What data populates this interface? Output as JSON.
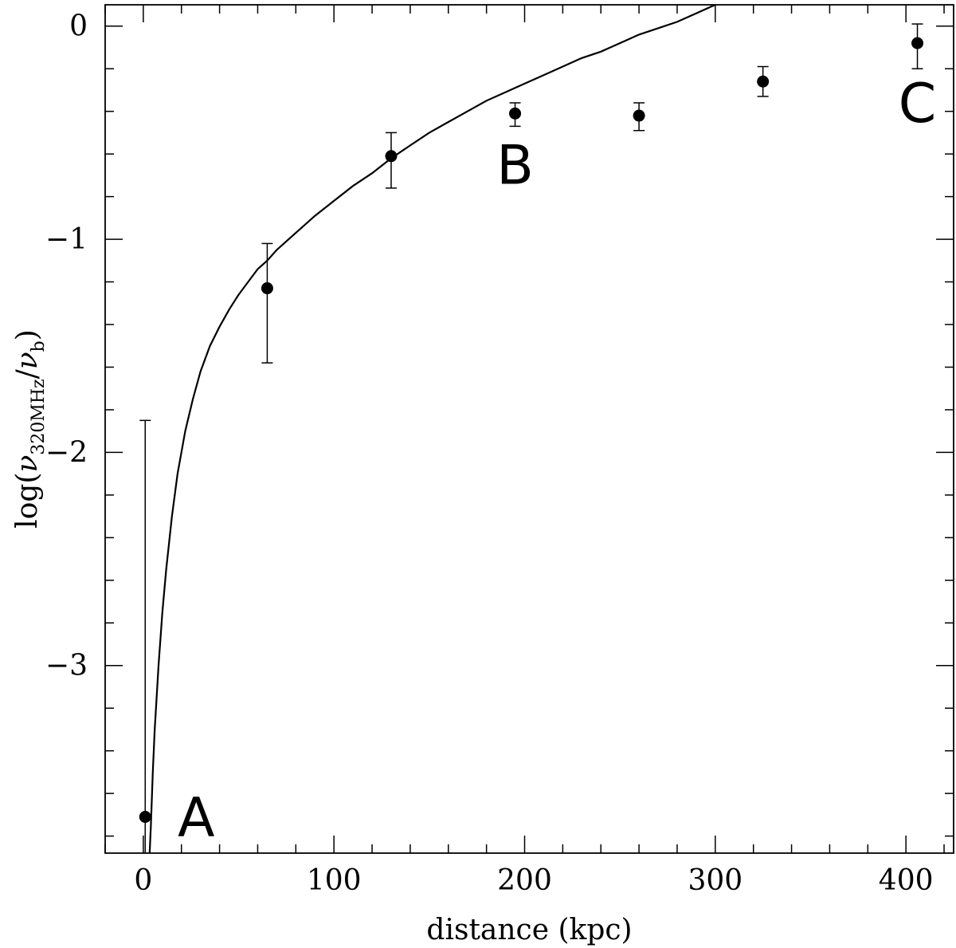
{
  "chart_data": {
    "type": "scatter",
    "xlabel": "distance (kpc)",
    "ylabel": {
      "prefix": "log(",
      "nu1": "ν",
      "sub1": "320MHz",
      "slash": "/",
      "nu2": "ν",
      "sub2": "b",
      "suffix": ")"
    },
    "xlim": [
      -20,
      425
    ],
    "ylim": [
      -3.88,
      0.1
    ],
    "x_ticks_major": [
      0,
      100,
      200,
      300,
      400
    ],
    "x_tick_labels": [
      "0",
      "100",
      "200",
      "300",
      "400"
    ],
    "x_ticks_minor_step": 20,
    "y_ticks_major": [
      0,
      -1,
      -2,
      -3
    ],
    "y_tick_labels": [
      "0",
      "−1",
      "−2",
      "−3"
    ],
    "y_ticks_minor_step": 0.2,
    "grid": false,
    "points": [
      {
        "x": 1,
        "y": -3.71,
        "yerr_low": -4.2,
        "yerr_high": -1.85
      },
      {
        "x": 65,
        "y": -1.23,
        "yerr_low": -1.58,
        "yerr_high": -1.02
      },
      {
        "x": 130,
        "y": -0.61,
        "yerr_low": -0.76,
        "yerr_high": -0.5
      },
      {
        "x": 195,
        "y": -0.41,
        "yerr_low": -0.47,
        "yerr_high": -0.36
      },
      {
        "x": 260,
        "y": -0.42,
        "yerr_low": -0.49,
        "yerr_high": -0.36
      },
      {
        "x": 325,
        "y": -0.26,
        "yerr_low": -0.33,
        "yerr_high": -0.19
      },
      {
        "x": 406,
        "y": -0.08,
        "yerr_low": -0.2,
        "yerr_high": 0.01
      }
    ],
    "curve": {
      "x": [
        3,
        4,
        5,
        6,
        8,
        10,
        12,
        15,
        18,
        22,
        26,
        30,
        35,
        40,
        45,
        50,
        55,
        60,
        65,
        70,
        80,
        90,
        100,
        110,
        120,
        130,
        140,
        150,
        160,
        170,
        180,
        190,
        200,
        210,
        220,
        230,
        240,
        250,
        260,
        270,
        280,
        290,
        300
      ],
      "y": [
        -3.95,
        -3.75,
        -3.5,
        -3.3,
        -3.0,
        -2.75,
        -2.55,
        -2.3,
        -2.1,
        -1.9,
        -1.75,
        -1.62,
        -1.5,
        -1.41,
        -1.33,
        -1.26,
        -1.2,
        -1.14,
        -1.1,
        -1.05,
        -0.97,
        -0.89,
        -0.82,
        -0.75,
        -0.69,
        -0.62,
        -0.56,
        -0.5,
        -0.45,
        -0.4,
        -0.35,
        -0.31,
        -0.27,
        -0.23,
        -0.19,
        -0.15,
        -0.12,
        -0.08,
        -0.04,
        -0.01,
        0.02,
        0.06,
        0.1
      ]
    },
    "annotations": [
      {
        "text": "A",
        "x": 18,
        "y": -3.71
      },
      {
        "text": "B",
        "x": 195,
        "y": -0.65
      },
      {
        "text": "C",
        "x": 406,
        "y": -0.36
      }
    ]
  }
}
